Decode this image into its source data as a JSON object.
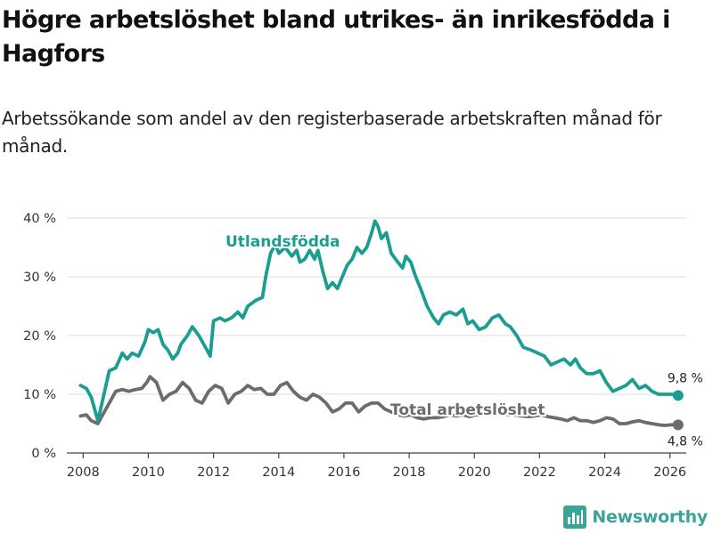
{
  "title": "Högre arbetslöshet bland utrikes- än inrikesfödda i Hagfors",
  "subtitle": "Arbetssökande som andel av den registerbaserade arbetskraften månad för månad.",
  "brand": {
    "name": "Newsworthy",
    "icon": "newsworthy-logo-icon"
  },
  "colors": {
    "foreign_born": "#1a9e91",
    "total": "#6b6b70",
    "grid": "#dddddd",
    "brand": "#3aa597"
  },
  "chart_data": {
    "type": "line",
    "y_tick_labels": [
      "0 %",
      "10 %",
      "20 %",
      "30 %",
      "40 %"
    ],
    "ylim": [
      0,
      40
    ],
    "x_tick_labels": [
      "2008",
      "2010",
      "2012",
      "2014",
      "2016",
      "2018",
      "2020",
      "2022",
      "2024",
      "2026"
    ],
    "xlim": [
      2007.5,
      2026.5
    ],
    "series": [
      {
        "name": "Utlandsfödda",
        "end_label": "9,8 %",
        "end_value": 9.8,
        "points": [
          [
            2007.92,
            11.5
          ],
          [
            2008.1,
            11
          ],
          [
            2008.25,
            9.5
          ],
          [
            2008.45,
            5.5
          ],
          [
            2008.6,
            9
          ],
          [
            2008.8,
            14
          ],
          [
            2009.0,
            14.5
          ],
          [
            2009.2,
            17
          ],
          [
            2009.35,
            16
          ],
          [
            2009.5,
            17
          ],
          [
            2009.7,
            16.5
          ],
          [
            2009.9,
            19
          ],
          [
            2010.0,
            21
          ],
          [
            2010.15,
            20.5
          ],
          [
            2010.3,
            21
          ],
          [
            2010.45,
            18.5
          ],
          [
            2010.6,
            17.5
          ],
          [
            2010.75,
            16
          ],
          [
            2010.9,
            17
          ],
          [
            2011.0,
            18.5
          ],
          [
            2011.2,
            20
          ],
          [
            2011.35,
            21.5
          ],
          [
            2011.55,
            20
          ],
          [
            2011.75,
            18
          ],
          [
            2011.9,
            16.5
          ],
          [
            2012.0,
            22.5
          ],
          [
            2012.2,
            23
          ],
          [
            2012.35,
            22.5
          ],
          [
            2012.55,
            23
          ],
          [
            2012.75,
            24
          ],
          [
            2012.9,
            23
          ],
          [
            2013.05,
            25
          ],
          [
            2013.3,
            26
          ],
          [
            2013.5,
            26.5
          ],
          [
            2013.6,
            30
          ],
          [
            2013.75,
            34
          ],
          [
            2013.9,
            35.5
          ],
          [
            2014.0,
            34
          ],
          [
            2014.2,
            35
          ],
          [
            2014.4,
            33.5
          ],
          [
            2014.55,
            34.5
          ],
          [
            2014.65,
            32.5
          ],
          [
            2014.8,
            33
          ],
          [
            2014.95,
            34.5
          ],
          [
            2015.1,
            33
          ],
          [
            2015.2,
            34.5
          ],
          [
            2015.35,
            31
          ],
          [
            2015.5,
            28
          ],
          [
            2015.65,
            29
          ],
          [
            2015.8,
            28
          ],
          [
            2015.95,
            30
          ],
          [
            2016.1,
            32
          ],
          [
            2016.25,
            33
          ],
          [
            2016.4,
            35
          ],
          [
            2016.55,
            34
          ],
          [
            2016.7,
            35
          ],
          [
            2016.85,
            37.5
          ],
          [
            2016.95,
            39.5
          ],
          [
            2017.05,
            38.5
          ],
          [
            2017.15,
            36.5
          ],
          [
            2017.3,
            37.5
          ],
          [
            2017.45,
            34
          ],
          [
            2017.65,
            32.5
          ],
          [
            2017.8,
            31.5
          ],
          [
            2017.9,
            33.5
          ],
          [
            2018.05,
            32.5
          ],
          [
            2018.2,
            30
          ],
          [
            2018.35,
            28
          ],
          [
            2018.55,
            25
          ],
          [
            2018.75,
            23
          ],
          [
            2018.9,
            22
          ],
          [
            2019.05,
            23.5
          ],
          [
            2019.25,
            24
          ],
          [
            2019.45,
            23.5
          ],
          [
            2019.65,
            24.5
          ],
          [
            2019.8,
            22
          ],
          [
            2019.95,
            22.5
          ],
          [
            2020.15,
            21
          ],
          [
            2020.35,
            21.5
          ],
          [
            2020.55,
            23
          ],
          [
            2020.75,
            23.5
          ],
          [
            2020.95,
            22
          ],
          [
            2021.1,
            21.5
          ],
          [
            2021.3,
            20
          ],
          [
            2021.5,
            18
          ],
          [
            2021.75,
            17.5
          ],
          [
            2021.95,
            17
          ],
          [
            2022.15,
            16.5
          ],
          [
            2022.35,
            15
          ],
          [
            2022.55,
            15.5
          ],
          [
            2022.75,
            16
          ],
          [
            2022.95,
            15
          ],
          [
            2023.1,
            16
          ],
          [
            2023.25,
            14.5
          ],
          [
            2023.45,
            13.5
          ],
          [
            2023.65,
            13.5
          ],
          [
            2023.85,
            14
          ],
          [
            2024.05,
            12
          ],
          [
            2024.25,
            10.5
          ],
          [
            2024.45,
            11
          ],
          [
            2024.65,
            11.5
          ],
          [
            2024.85,
            12.5
          ],
          [
            2025.05,
            11
          ],
          [
            2025.25,
            11.5
          ],
          [
            2025.45,
            10.5
          ],
          [
            2025.65,
            10
          ],
          [
            2025.85,
            10
          ],
          [
            2026.05,
            10
          ],
          [
            2026.25,
            9.8
          ]
        ]
      },
      {
        "name": "Total arbetslöshet",
        "end_label": "4,8 %",
        "end_value": 4.8,
        "points": [
          [
            2007.92,
            6.3
          ],
          [
            2008.1,
            6.5
          ],
          [
            2008.25,
            5.5
          ],
          [
            2008.45,
            5
          ],
          [
            2008.6,
            6.5
          ],
          [
            2008.8,
            8.5
          ],
          [
            2009.0,
            10.5
          ],
          [
            2009.2,
            10.8
          ],
          [
            2009.4,
            10.5
          ],
          [
            2009.6,
            10.8
          ],
          [
            2009.8,
            11
          ],
          [
            2009.95,
            12
          ],
          [
            2010.05,
            13
          ],
          [
            2010.25,
            12
          ],
          [
            2010.45,
            9
          ],
          [
            2010.65,
            10
          ],
          [
            2010.85,
            10.5
          ],
          [
            2011.05,
            12
          ],
          [
            2011.25,
            11
          ],
          [
            2011.45,
            9
          ],
          [
            2011.65,
            8.5
          ],
          [
            2011.85,
            10.5
          ],
          [
            2012.05,
            11.5
          ],
          [
            2012.25,
            11
          ],
          [
            2012.45,
            8.5
          ],
          [
            2012.65,
            10
          ],
          [
            2012.85,
            10.5
          ],
          [
            2013.05,
            11.5
          ],
          [
            2013.25,
            10.8
          ],
          [
            2013.45,
            11
          ],
          [
            2013.65,
            10
          ],
          [
            2013.85,
            10
          ],
          [
            2014.05,
            11.5
          ],
          [
            2014.25,
            12
          ],
          [
            2014.45,
            10.5
          ],
          [
            2014.65,
            9.5
          ],
          [
            2014.85,
            9
          ],
          [
            2015.05,
            10
          ],
          [
            2015.25,
            9.5
          ],
          [
            2015.45,
            8.5
          ],
          [
            2015.65,
            7
          ],
          [
            2015.85,
            7.5
          ],
          [
            2016.05,
            8.5
          ],
          [
            2016.25,
            8.5
          ],
          [
            2016.45,
            7
          ],
          [
            2016.65,
            8
          ],
          [
            2016.85,
            8.5
          ],
          [
            2017.05,
            8.5
          ],
          [
            2017.25,
            7.5
          ],
          [
            2017.45,
            7
          ],
          [
            2017.65,
            6.5
          ],
          [
            2017.85,
            6.3
          ],
          [
            2018.05,
            6.5
          ],
          [
            2018.25,
            6
          ],
          [
            2018.45,
            5.8
          ],
          [
            2018.65,
            6
          ],
          [
            2018.85,
            6
          ],
          [
            2019.05,
            6.2
          ],
          [
            2019.25,
            6.5
          ],
          [
            2019.45,
            6.3
          ],
          [
            2019.65,
            6.5
          ],
          [
            2019.85,
            6.2
          ],
          [
            2020.05,
            6.5
          ],
          [
            2020.25,
            6.5
          ],
          [
            2020.45,
            6.8
          ],
          [
            2020.65,
            7
          ],
          [
            2020.85,
            6.8
          ],
          [
            2021.05,
            6.5
          ],
          [
            2021.25,
            6.5
          ],
          [
            2021.45,
            6.3
          ],
          [
            2021.65,
            6.2
          ],
          [
            2021.85,
            6.3
          ],
          [
            2022.05,
            6.5
          ],
          [
            2022.25,
            6.2
          ],
          [
            2022.45,
            6
          ],
          [
            2022.65,
            5.8
          ],
          [
            2022.85,
            5.5
          ],
          [
            2023.05,
            6
          ],
          [
            2023.25,
            5.5
          ],
          [
            2023.45,
            5.5
          ],
          [
            2023.65,
            5.2
          ],
          [
            2023.85,
            5.5
          ],
          [
            2024.05,
            6
          ],
          [
            2024.25,
            5.8
          ],
          [
            2024.45,
            5
          ],
          [
            2024.65,
            5
          ],
          [
            2024.85,
            5.3
          ],
          [
            2025.05,
            5.5
          ],
          [
            2025.25,
            5.2
          ],
          [
            2025.45,
            5
          ],
          [
            2025.65,
            4.8
          ],
          [
            2025.85,
            4.7
          ],
          [
            2026.05,
            4.8
          ],
          [
            2026.25,
            4.8
          ]
        ]
      }
    ]
  }
}
